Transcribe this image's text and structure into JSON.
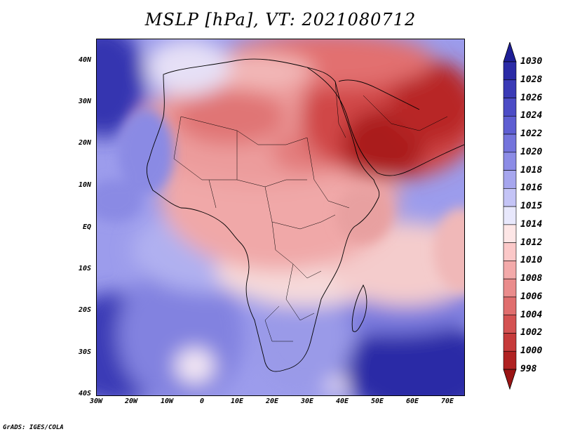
{
  "title": "MSLP [hPa], VT: 2021080712",
  "footer": "GrADS: IGES/COLA",
  "axes": {
    "lat_labels": [
      "40N",
      "30N",
      "20N",
      "10N",
      "EQ",
      "10S",
      "20S",
      "30S",
      "40S"
    ],
    "lon_labels": [
      "30W",
      "20W",
      "10W",
      "0",
      "10E",
      "20E",
      "30E",
      "40E",
      "50E",
      "60E",
      "70E"
    ]
  },
  "colorbar": {
    "levels": [
      "1030",
      "1028",
      "1026",
      "1024",
      "1022",
      "1020",
      "1018",
      "1016",
      "1015",
      "1014",
      "1012",
      "1010",
      "1008",
      "1006",
      "1004",
      "1002",
      "1000",
      "998"
    ],
    "colors": [
      "#1e1e96",
      "#2a2aa6",
      "#3a3ab6",
      "#4c4cc6",
      "#5e5ed2",
      "#7474dc",
      "#8c8ce6",
      "#a6a6ee",
      "#c4c4f6",
      "#e8e8fc",
      "#fde6e6",
      "#fbc8c8",
      "#f3aaaa",
      "#ea8c8c",
      "#e06e6e",
      "#d45252",
      "#c63a3a",
      "#b02222",
      "#9a1414"
    ]
  }
}
